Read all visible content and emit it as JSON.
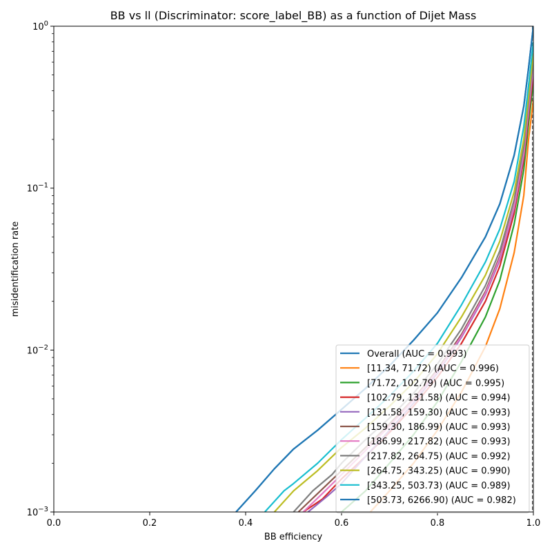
{
  "chart_data": {
    "type": "line",
    "title": "BB vs ll (Discriminator: score_label_BB) as a function of Dijet Mass",
    "xlabel": "BB efficiency",
    "ylabel": "misidentification rate",
    "xlim": [
      0.0,
      1.0
    ],
    "ylim": [
      0.001,
      1.0
    ],
    "yscale": "log",
    "grid": false,
    "legend_position": "lower-right",
    "x_ticks": [
      {
        "value": 0.0,
        "label": "0.0"
      },
      {
        "value": 0.2,
        "label": "0.2"
      },
      {
        "value": 0.4,
        "label": "0.4"
      },
      {
        "value": 0.6,
        "label": "0.6"
      },
      {
        "value": 0.8,
        "label": "0.8"
      },
      {
        "value": 1.0,
        "label": "1.0"
      }
    ],
    "y_ticks": [
      {
        "value": 0.001,
        "label": "10",
        "exp": "−3"
      },
      {
        "value": 0.01,
        "label": "10",
        "exp": "−2"
      },
      {
        "value": 0.1,
        "label": "10",
        "exp": "−1"
      },
      {
        "value": 1.0,
        "label": "10",
        "exp": "0"
      }
    ],
    "reference_line": {
      "x": 0.998,
      "style": "dashed",
      "color": "#555555"
    },
    "series": [
      {
        "name": "Overall (AUC = 0.993)",
        "color": "#1f77b4",
        "points": [
          [
            0.38,
            0.001
          ],
          [
            0.42,
            0.00135
          ],
          [
            0.46,
            0.00185
          ],
          [
            0.5,
            0.00245
          ],
          [
            0.55,
            0.0032
          ],
          [
            0.6,
            0.0043
          ],
          [
            0.65,
            0.0058
          ],
          [
            0.7,
            0.008
          ],
          [
            0.75,
            0.0115
          ],
          [
            0.8,
            0.017
          ],
          [
            0.85,
            0.028
          ],
          [
            0.9,
            0.05
          ],
          [
            0.93,
            0.08
          ],
          [
            0.96,
            0.16
          ],
          [
            0.98,
            0.32
          ],
          [
            0.99,
            0.55
          ],
          [
            1.0,
            1.0
          ]
        ]
      },
      {
        "name": "[11.34, 71.72) (AUC = 0.996)",
        "color": "#ff7f0e",
        "points": [
          [
            0.66,
            0.001
          ],
          [
            0.7,
            0.00135
          ],
          [
            0.75,
            0.002
          ],
          [
            0.8,
            0.0032
          ],
          [
            0.85,
            0.0055
          ],
          [
            0.9,
            0.0105
          ],
          [
            0.93,
            0.018
          ],
          [
            0.96,
            0.04
          ],
          [
            0.98,
            0.09
          ],
          [
            0.99,
            0.2
          ],
          [
            1.0,
            0.35
          ]
        ]
      },
      {
        "name": "[71.72, 102.79) (AUC = 0.995)",
        "color": "#2ca02c",
        "points": [
          [
            0.6,
            0.001
          ],
          [
            0.65,
            0.00135
          ],
          [
            0.7,
            0.002
          ],
          [
            0.75,
            0.003
          ],
          [
            0.8,
            0.0048
          ],
          [
            0.85,
            0.0085
          ],
          [
            0.9,
            0.016
          ],
          [
            0.93,
            0.027
          ],
          [
            0.96,
            0.06
          ],
          [
            0.98,
            0.13
          ],
          [
            0.99,
            0.25
          ],
          [
            1.0,
            0.45
          ]
        ]
      },
      {
        "name": "[102.79, 131.58) (AUC = 0.994)",
        "color": "#d62728",
        "points": [
          [
            0.52,
            0.001
          ],
          [
            0.56,
            0.0012
          ],
          [
            0.6,
            0.0016
          ],
          [
            0.65,
            0.0022
          ],
          [
            0.7,
            0.0031
          ],
          [
            0.75,
            0.0045
          ],
          [
            0.8,
            0.0068
          ],
          [
            0.85,
            0.011
          ],
          [
            0.9,
            0.02
          ],
          [
            0.93,
            0.033
          ],
          [
            0.96,
            0.07
          ],
          [
            0.98,
            0.15
          ],
          [
            0.99,
            0.28
          ],
          [
            1.0,
            0.5
          ]
        ]
      },
      {
        "name": "[131.58, 159.30) (AUC = 0.993)",
        "color": "#9467bd",
        "points": [
          [
            0.53,
            0.001
          ],
          [
            0.57,
            0.00125
          ],
          [
            0.6,
            0.0015
          ],
          [
            0.65,
            0.0022
          ],
          [
            0.7,
            0.0032
          ],
          [
            0.75,
            0.0047
          ],
          [
            0.8,
            0.0072
          ],
          [
            0.85,
            0.012
          ],
          [
            0.9,
            0.022
          ],
          [
            0.93,
            0.036
          ],
          [
            0.96,
            0.075
          ],
          [
            0.98,
            0.16
          ],
          [
            0.99,
            0.3
          ],
          [
            1.0,
            0.55
          ]
        ]
      },
      {
        "name": "[159.30, 186.99) (AUC = 0.993)",
        "color": "#8c564b",
        "points": [
          [
            0.51,
            0.001
          ],
          [
            0.55,
            0.0013
          ],
          [
            0.6,
            0.0018
          ],
          [
            0.65,
            0.0025
          ],
          [
            0.7,
            0.0035
          ],
          [
            0.75,
            0.005
          ],
          [
            0.8,
            0.0076
          ],
          [
            0.85,
            0.0125
          ],
          [
            0.9,
            0.023
          ],
          [
            0.93,
            0.038
          ],
          [
            0.96,
            0.078
          ],
          [
            0.98,
            0.17
          ],
          [
            0.99,
            0.32
          ],
          [
            1.0,
            0.58
          ]
        ]
      },
      {
        "name": "[186.99, 217.82) (AUC = 0.993)",
        "color": "#e377c2",
        "points": [
          [
            0.52,
            0.001
          ],
          [
            0.56,
            0.0013
          ],
          [
            0.6,
            0.0017
          ],
          [
            0.65,
            0.0024
          ],
          [
            0.7,
            0.0034
          ],
          [
            0.75,
            0.0049
          ],
          [
            0.8,
            0.0074
          ],
          [
            0.85,
            0.0122
          ],
          [
            0.9,
            0.0225
          ],
          [
            0.93,
            0.037
          ],
          [
            0.96,
            0.077
          ],
          [
            0.98,
            0.165
          ],
          [
            0.99,
            0.31
          ],
          [
            1.0,
            0.57
          ]
        ]
      },
      {
        "name": "[217.82, 264.75) (AUC = 0.992)",
        "color": "#7f7f7f",
        "points": [
          [
            0.5,
            0.001
          ],
          [
            0.54,
            0.00135
          ],
          [
            0.58,
            0.0017
          ],
          [
            0.6,
            0.002
          ],
          [
            0.65,
            0.0028
          ],
          [
            0.7,
            0.0038
          ],
          [
            0.75,
            0.0054
          ],
          [
            0.8,
            0.0082
          ],
          [
            0.85,
            0.0135
          ],
          [
            0.9,
            0.025
          ],
          [
            0.93,
            0.041
          ],
          [
            0.96,
            0.085
          ],
          [
            0.98,
            0.18
          ],
          [
            0.99,
            0.34
          ],
          [
            1.0,
            0.62
          ]
        ]
      },
      {
        "name": "[264.75, 343.25) (AUC = 0.990)",
        "color": "#bcbd22",
        "points": [
          [
            0.46,
            0.001
          ],
          [
            0.5,
            0.00135
          ],
          [
            0.55,
            0.0018
          ],
          [
            0.6,
            0.0025
          ],
          [
            0.65,
            0.0033
          ],
          [
            0.7,
            0.0045
          ],
          [
            0.75,
            0.0063
          ],
          [
            0.8,
            0.0095
          ],
          [
            0.85,
            0.016
          ],
          [
            0.9,
            0.029
          ],
          [
            0.93,
            0.047
          ],
          [
            0.96,
            0.095
          ],
          [
            0.98,
            0.2
          ],
          [
            0.99,
            0.37
          ],
          [
            1.0,
            0.68
          ]
        ]
      },
      {
        "name": "[343.25, 503.73) (AUC = 0.989)",
        "color": "#17becf",
        "points": [
          [
            0.44,
            0.001
          ],
          [
            0.48,
            0.00135
          ],
          [
            0.5,
            0.0015
          ],
          [
            0.55,
            0.002
          ],
          [
            0.6,
            0.0028
          ],
          [
            0.65,
            0.0038
          ],
          [
            0.7,
            0.0052
          ],
          [
            0.75,
            0.0074
          ],
          [
            0.8,
            0.011
          ],
          [
            0.85,
            0.019
          ],
          [
            0.9,
            0.035
          ],
          [
            0.93,
            0.056
          ],
          [
            0.96,
            0.11
          ],
          [
            0.98,
            0.24
          ],
          [
            0.99,
            0.43
          ],
          [
            1.0,
            0.8
          ]
        ]
      },
      {
        "name": "[503.73, 6266.90) (AUC = 0.982)",
        "color": "#1f77b4",
        "points": [
          [
            0.38,
            0.001
          ],
          [
            0.42,
            0.00135
          ],
          [
            0.46,
            0.00185
          ],
          [
            0.5,
            0.00245
          ],
          [
            0.55,
            0.0032
          ],
          [
            0.6,
            0.0043
          ],
          [
            0.65,
            0.0058
          ],
          [
            0.7,
            0.008
          ],
          [
            0.75,
            0.0115
          ],
          [
            0.8,
            0.017
          ],
          [
            0.85,
            0.028
          ],
          [
            0.9,
            0.05
          ],
          [
            0.93,
            0.08
          ],
          [
            0.96,
            0.16
          ],
          [
            0.98,
            0.32
          ],
          [
            0.99,
            0.55
          ],
          [
            1.0,
            1.0
          ]
        ]
      }
    ]
  }
}
